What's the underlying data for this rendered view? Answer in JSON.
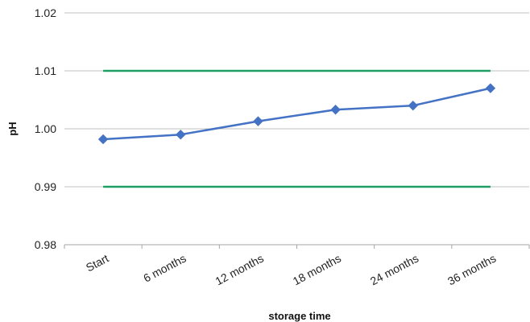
{
  "chart_data": {
    "type": "line",
    "title": "",
    "xlabel": "storage time",
    "ylabel": "pH",
    "categories": [
      "Start",
      "6 months",
      "12 months",
      "18 months",
      "24 months",
      "36 months"
    ],
    "ylim": [
      0.98,
      1.02
    ],
    "yticks": [
      "0.98",
      "0.99",
      "1.00",
      "1.01",
      "1.02"
    ],
    "grid": "horizontal",
    "legend": "none",
    "series": [
      {
        "values": [
          0.9982,
          0.999,
          1.0013,
          1.0033,
          1.004,
          1.007
        ],
        "color": "#4472C4",
        "marker": "diamond"
      },
      {
        "values": [
          1.01,
          1.01,
          1.01,
          1.01,
          1.01,
          1.01
        ],
        "color": "#1E9E63",
        "marker": "none"
      },
      {
        "values": [
          0.99,
          0.99,
          0.99,
          0.99,
          0.99,
          0.99
        ],
        "color": "#1E9E63",
        "marker": "none"
      }
    ],
    "colors": {
      "grid": "#BFBFBF",
      "axis": "#A6A6A6"
    }
  }
}
